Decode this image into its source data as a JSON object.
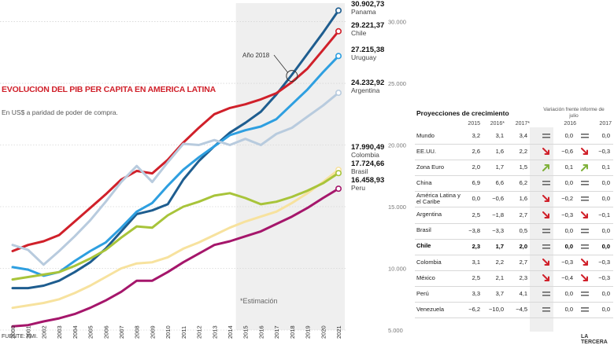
{
  "title": "EVOLUCION DEL PIB PER CAPITA EN AMERICA LATINA",
  "subtitle": "En US$ a paridad de poder de compra.",
  "source": "FUENTE: FMI.",
  "brand": "LA TERCERA",
  "chart_data": {
    "type": "line",
    "x": [
      2000,
      2001,
      2002,
      2003,
      2004,
      2005,
      2006,
      2007,
      2008,
      2009,
      2010,
      2011,
      2012,
      2013,
      2014,
      2015,
      2016,
      2017,
      2018,
      2019,
      2020,
      2021
    ],
    "x_tick_labels": [
      "2000",
      "2001",
      "2002",
      "2003",
      "2004",
      "2005",
      "2006",
      "2007",
      "2008",
      "2009",
      "2010",
      "2011",
      "2012",
      "2013",
      "2014",
      "2015",
      "2016",
      "2017",
      "2018",
      "2019",
      "2020",
      "2021"
    ],
    "ylim": [
      5000,
      31500
    ],
    "y_ticks": [
      5000,
      10000,
      15000,
      20000,
      25000,
      30000
    ],
    "y_tick_labels": [
      "5.000",
      "10.000",
      "15.000",
      "20.000",
      "25.000",
      "30.000"
    ],
    "estimate_from": 2015,
    "estimate_label": "*Estimación",
    "annotation": {
      "label": "Año 2018",
      "x": 2018,
      "y": 25600
    },
    "series": [
      {
        "name": "Panama",
        "color": "#1e5d8f",
        "end_label": "30.902,73",
        "values": [
          8400,
          8400,
          8600,
          9000,
          9700,
          10500,
          11600,
          13000,
          14400,
          14700,
          15200,
          17200,
          18700,
          19900,
          21000,
          21800,
          22700,
          24100,
          25700,
          27400,
          29100,
          30902.73
        ]
      },
      {
        "name": "Chile",
        "color": "#d0202a",
        "end_label": "29.221,37",
        "values": [
          11400,
          11900,
          12200,
          12700,
          13800,
          14900,
          16000,
          17200,
          17900,
          17700,
          18800,
          20200,
          21400,
          22500,
          23000,
          23300,
          23700,
          24200,
          25100,
          26200,
          27700,
          29221.37
        ]
      },
      {
        "name": "Uruguay",
        "color": "#2e9fe0",
        "end_label": "27.215,38",
        "values": [
          10100,
          9900,
          9400,
          9700,
          10600,
          11400,
          12100,
          13300,
          14600,
          15300,
          16700,
          18000,
          19000,
          19900,
          20800,
          21200,
          21500,
          22100,
          23300,
          24500,
          25900,
          27215.38
        ]
      },
      {
        "name": "Argentina",
        "color": "#b8cbde",
        "end_label": "24.232,92",
        "values": [
          11900,
          11500,
          10300,
          11400,
          12600,
          13900,
          15400,
          17000,
          18300,
          17000,
          18600,
          20100,
          20000,
          20400,
          20000,
          20500,
          20000,
          20900,
          21400,
          22300,
          23200,
          24232.92
        ]
      },
      {
        "name": "Colombia",
        "color": "#f7e29e",
        "end_label": "17.990,49",
        "values": [
          6800,
          7000,
          7200,
          7500,
          8000,
          8600,
          9300,
          10000,
          10400,
          10500,
          10900,
          11600,
          12100,
          12700,
          13300,
          13800,
          14200,
          14600,
          15300,
          16100,
          17000,
          17990.49
        ]
      },
      {
        "name": "Brasil",
        "color": "#a8c43a",
        "end_label": "17.724,66",
        "values": [
          9100,
          9300,
          9500,
          9700,
          10200,
          10800,
          11500,
          12500,
          13400,
          13300,
          14300,
          15000,
          15400,
          15900,
          16100,
          15700,
          15200,
          15400,
          15800,
          16300,
          16900,
          17724.66
        ]
      },
      {
        "name": "Peru",
        "color": "#a5166b",
        "end_label": "16.458,93",
        "values": [
          5300,
          5400,
          5700,
          5950,
          6300,
          6800,
          7400,
          8100,
          9000,
          9000,
          9700,
          10500,
          11200,
          11900,
          12200,
          12600,
          13000,
          13600,
          14200,
          14900,
          15700,
          16458.93
        ]
      }
    ]
  },
  "projections": {
    "title": "Proyecciones de crecimiento",
    "var_title": "Variación frente informe de julio",
    "headers": [
      "2015",
      "2016*",
      "2017*",
      "2016",
      "2017"
    ],
    "rows": [
      {
        "name": "Mundo",
        "v2015": "3,2",
        "v2016": "3,1",
        "v2017": "3,4",
        "d2016": "0,0",
        "i2016": "equal",
        "d2017": "0,0",
        "i2017": "equal",
        "bold": false
      },
      {
        "name": "EE.UU.",
        "v2015": "2,6",
        "v2016": "1,6",
        "v2017": "2,2",
        "d2016": "−0,6",
        "i2016": "down",
        "d2017": "−0,3",
        "i2017": "down",
        "bold": false
      },
      {
        "name": "Zona Euro",
        "v2015": "2,0",
        "v2016": "1,7",
        "v2017": "1,5",
        "d2016": "0,1",
        "i2016": "up",
        "d2017": "0,1",
        "i2017": "up",
        "bold": false
      },
      {
        "name": "China",
        "v2015": "6,9",
        "v2016": "6,6",
        "v2017": "6,2",
        "d2016": "0,0",
        "i2016": "equal",
        "d2017": "0,0",
        "i2017": "equal",
        "bold": false
      },
      {
        "name": "América Latina y el Caribe",
        "v2015": "0,0",
        "v2016": "−0,6",
        "v2017": "1,6",
        "d2016": "−0,2",
        "i2016": "down",
        "d2017": "0,0",
        "i2017": "equal",
        "bold": false
      },
      {
        "name": "Argentina",
        "v2015": "2,5",
        "v2016": "−1,8",
        "v2017": "2,7",
        "d2016": "−0,3",
        "i2016": "down",
        "d2017": "−0,1",
        "i2017": "down",
        "bold": false
      },
      {
        "name": "Brasil",
        "v2015": "−3,8",
        "v2016": "−3,3",
        "v2017": "0,5",
        "d2016": "0,0",
        "i2016": "equal",
        "d2017": "0,0",
        "i2017": "equal",
        "bold": false
      },
      {
        "name": "Chile",
        "v2015": "2,3",
        "v2016": "1,7",
        "v2017": "2,0",
        "d2016": "0,0",
        "i2016": "equal",
        "d2017": "0,0",
        "i2017": "equal",
        "bold": true
      },
      {
        "name": "Colombia",
        "v2015": "3,1",
        "v2016": "2,2",
        "v2017": "2,7",
        "d2016": "−0,3",
        "i2016": "down",
        "d2017": "−0,3",
        "i2017": "down",
        "bold": false
      },
      {
        "name": "México",
        "v2015": "2,5",
        "v2016": "2,1",
        "v2017": "2,3",
        "d2016": "−0,4",
        "i2016": "down",
        "d2017": "−0,3",
        "i2017": "down",
        "bold": false
      },
      {
        "name": "Perú",
        "v2015": "3,3",
        "v2016": "3,7",
        "v2017": "4,1",
        "d2016": "0,0",
        "i2016": "equal",
        "d2017": "0,0",
        "i2017": "equal",
        "bold": false
      },
      {
        "name": "Venezuela",
        "v2015": "−6,2",
        "v2016": "−10,0",
        "v2017": "−4,5",
        "d2016": "0,0",
        "i2016": "equal",
        "d2017": "0,0",
        "i2017": "equal",
        "bold": false
      }
    ]
  }
}
